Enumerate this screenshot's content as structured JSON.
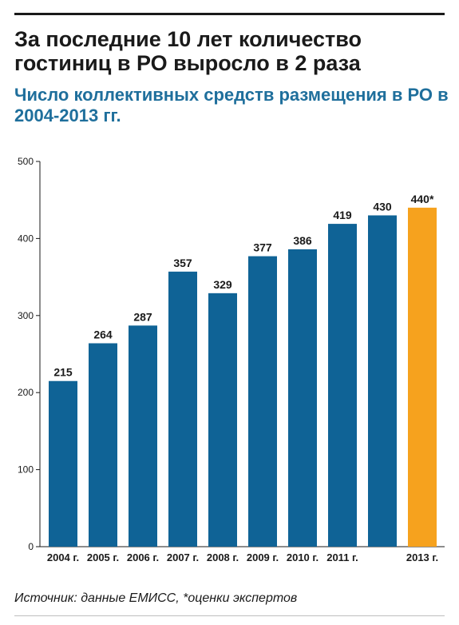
{
  "header": {
    "title": "За последние 10 лет количество гостиниц в РО выросло в 2 раза",
    "subtitle": "Число коллективных средств размещения в РО в 2004-2013 гг."
  },
  "footer": {
    "source": "Источник: данные ЕМИСС, *оценки экспертов"
  },
  "colors": {
    "bar": "#0f6396",
    "highlight": "#f6a21e",
    "title": "#1a1a1a",
    "subtitle": "#1f6f9c"
  },
  "chart_data": {
    "type": "bar",
    "categories": [
      "2004 г.",
      "2005 г.",
      "2006 г.",
      "2007 г.",
      "2008 г.",
      "2009 г.",
      "2010 г.",
      "2011 г.",
      "",
      "2013 г."
    ],
    "values": [
      215,
      264,
      287,
      357,
      329,
      377,
      386,
      419,
      430,
      440
    ],
    "value_labels": [
      "215",
      "264",
      "287",
      "357",
      "329",
      "377",
      "386",
      "419",
      "430",
      "440*"
    ],
    "highlight_index": 9,
    "ylim": [
      0,
      500
    ],
    "yticks": [
      0,
      100,
      200,
      300,
      400,
      500
    ],
    "xlabel": "",
    "ylabel": "",
    "grid": false,
    "legend": "none"
  }
}
